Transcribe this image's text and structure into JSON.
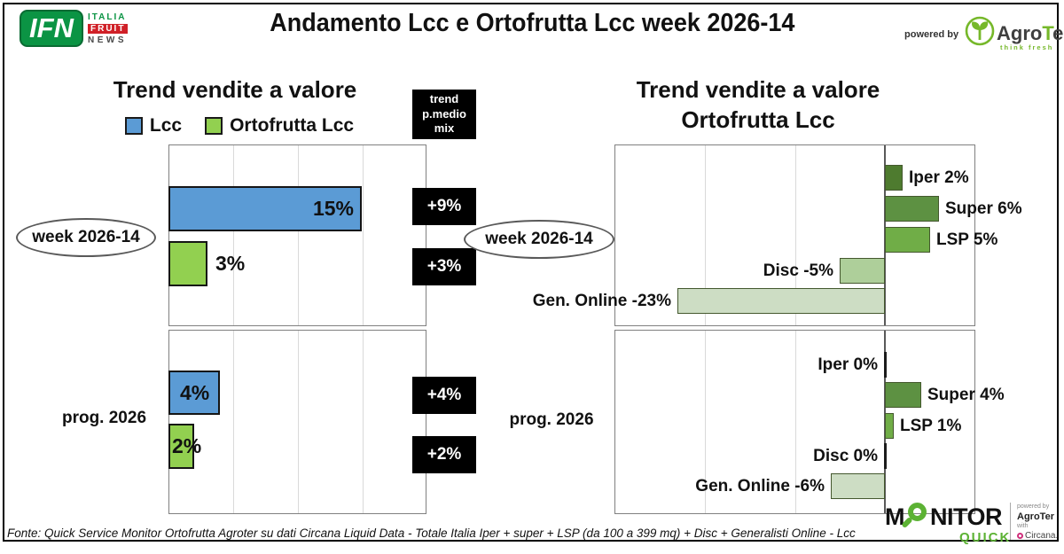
{
  "header": {
    "title": "Andamento Lcc e Ortofrutta Lcc week 2026-14",
    "ifn": {
      "acronym": "IFN",
      "word1": "ITALIA",
      "word2": "FRUIT",
      "word3": "NEWS",
      "green": "#0b9444",
      "red": "#d02027"
    },
    "powered_by": "powered by",
    "agroter": {
      "pre": "Agro",
      "t": "T",
      "post": "er",
      "tagline": "think fresh",
      "green": "#76b82a"
    }
  },
  "left_panel": {
    "title": "Trend vendite a valore",
    "trend_box_header": "trend\np.medio\nmix"
  },
  "right_panel": {
    "title_line1": "Trend vendite a valore",
    "title_line2": "Ortofrutta Lcc"
  },
  "footer": {
    "source": "Fonte: Quick Service Monitor Ortofrutta Agroter su dati Circana Liquid Data - Totale Italia Iper + super + LSP (da 100 a 399 mq) + Disc + Generalisti Online - Lcc"
  },
  "monitor_logo": {
    "m": "M",
    "nitor": "NITOR",
    "quick": "QUICK",
    "powered_by": "powered by",
    "agroter": "AgroTer",
    "with_word": "with",
    "circana": "Circana.",
    "green": "#5cb234",
    "circana_pink": "#cf2f7b"
  },
  "chart_data": [
    {
      "type": "bar",
      "orientation": "horizontal",
      "title": "Trend vendite a valore",
      "xlim": [
        0,
        20
      ],
      "gridline_step": 5,
      "grid": true,
      "legend": [
        {
          "label": "Lcc",
          "color": "#5b9bd5"
        },
        {
          "label": "Ortofrutta Lcc",
          "color": "#92d050"
        }
      ],
      "trend_column_header": "trend p.medio mix",
      "groups": [
        {
          "label": "week 2026-14",
          "label_style": "oval",
          "bars": [
            {
              "series": "Lcc",
              "value": 15,
              "display": "15%",
              "color": "#5b9bd5"
            },
            {
              "series": "Ortofrutta Lcc",
              "value": 3,
              "display": "3%",
              "color": "#92d050"
            }
          ],
          "trend_boxes": [
            "+9%",
            "+3%"
          ]
        },
        {
          "label": "prog. 2026",
          "label_style": "plain",
          "bars": [
            {
              "series": "Lcc",
              "value": 4,
              "display": "4%",
              "color": "#5b9bd5"
            },
            {
              "series": "Ortofrutta Lcc",
              "value": 2,
              "display": "2%",
              "color": "#92d050"
            }
          ],
          "trend_boxes": [
            "+4%",
            "+2%"
          ]
        }
      ]
    },
    {
      "type": "bar",
      "orientation": "horizontal",
      "title": "Trend vendite a valore Ortofrutta Lcc",
      "xlim": [
        -30,
        10
      ],
      "gridline_step": 10,
      "grid": true,
      "groups": [
        {
          "label": "week 2026-14",
          "label_style": "oval",
          "bars": [
            {
              "category": "Iper",
              "value": 2,
              "display": "Iper 2%",
              "color": "#4e7b2f"
            },
            {
              "category": "Super",
              "value": 6,
              "display": "Super 6%",
              "color": "#5d9142"
            },
            {
              "category": "LSP",
              "value": 5,
              "display": "LSP 5%",
              "color": "#70ad47"
            },
            {
              "category": "Disc",
              "value": -5,
              "display": "Disc -5%",
              "color": "#aecf9a"
            },
            {
              "category": "Gen. Online",
              "value": -23,
              "display": "Gen. Online -23%",
              "color": "#cdddc4"
            }
          ]
        },
        {
          "label": "prog. 2026",
          "label_style": "plain",
          "bars": [
            {
              "category": "Iper",
              "value": 0,
              "display": "Iper 0%",
              "color": "#4e7b2f"
            },
            {
              "category": "Super",
              "value": 4,
              "display": "Super 4%",
              "color": "#5d9142"
            },
            {
              "category": "LSP",
              "value": 1,
              "display": "LSP 1%",
              "color": "#70ad47"
            },
            {
              "category": "Disc",
              "value": 0,
              "display": "Disc 0%",
              "color": "#aecf9a"
            },
            {
              "category": "Gen. Online",
              "value": -6,
              "display": "Gen. Online -6%",
              "color": "#cdddc4"
            }
          ]
        }
      ]
    }
  ]
}
